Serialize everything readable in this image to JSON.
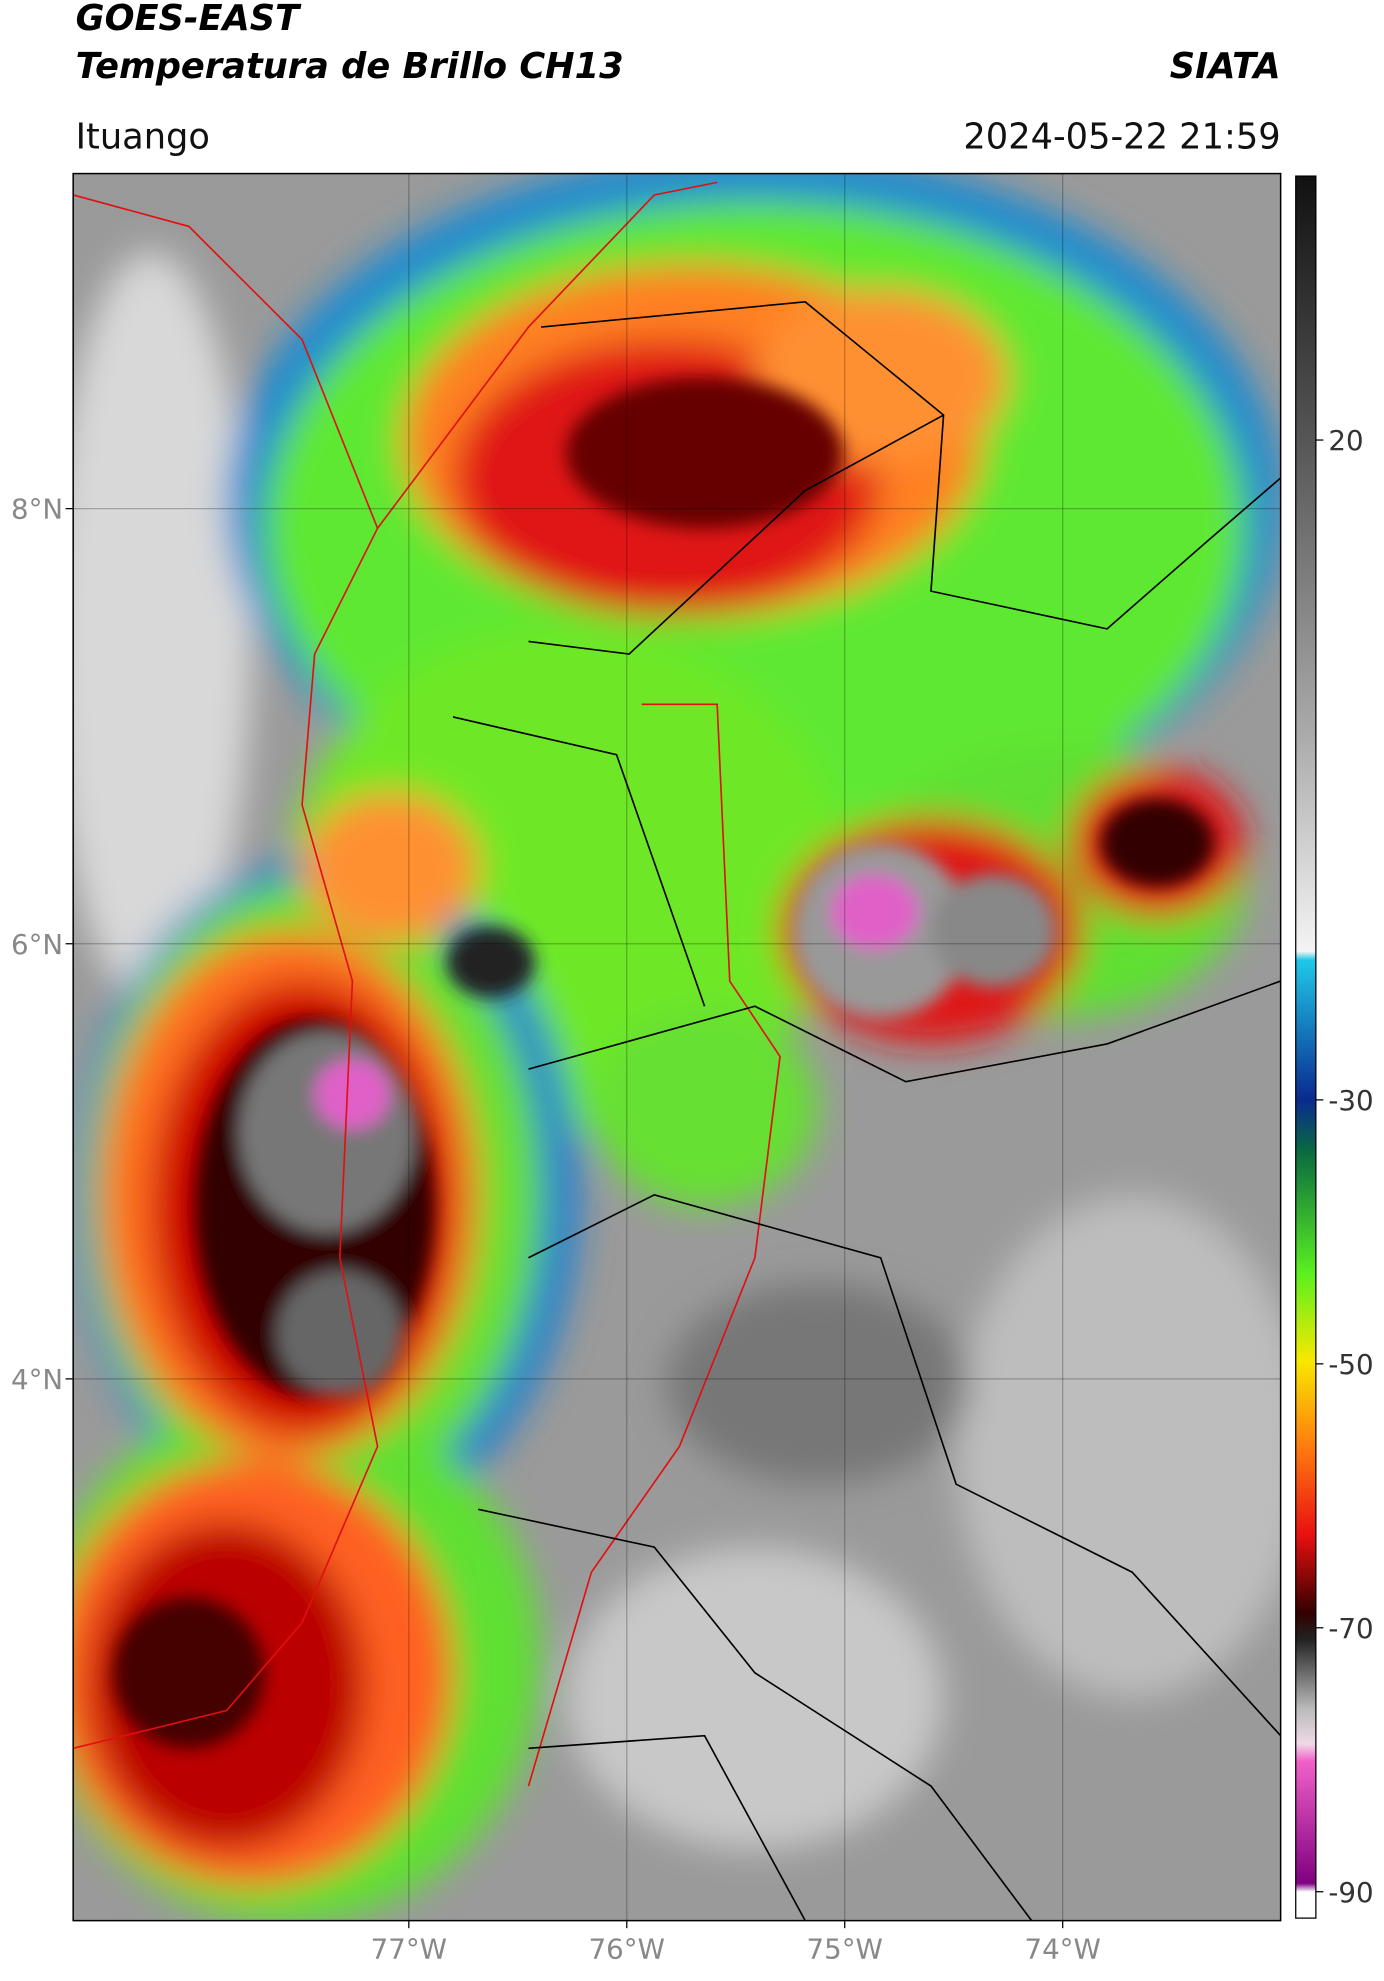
{
  "header": {
    "title": "GOES-EAST",
    "subtitle": "Temperatura de Brillo CH13",
    "brand": "SIATA",
    "location": "Ituango",
    "timestamp": "2024-05-22 21:59"
  },
  "chart_data": {
    "type": "map",
    "xlim": [
      -78.54,
      -73.0
    ],
    "ylim": [
      1.51,
      9.54
    ],
    "xticks": [
      {
        "value": -77,
        "label": "77°W"
      },
      {
        "value": -76,
        "label": "76°W"
      },
      {
        "value": -75,
        "label": "75°W"
      },
      {
        "value": -74,
        "label": "74°W"
      }
    ],
    "yticks": [
      {
        "value": 8,
        "label": "8°N"
      },
      {
        "value": 6,
        "label": "6°N"
      },
      {
        "value": 4,
        "label": "4°N"
      }
    ],
    "grid": true,
    "colorbar": {
      "clim": [
        -92,
        40
      ],
      "ticks": [
        20,
        -30,
        -50,
        -70,
        -90
      ]
    }
  }
}
